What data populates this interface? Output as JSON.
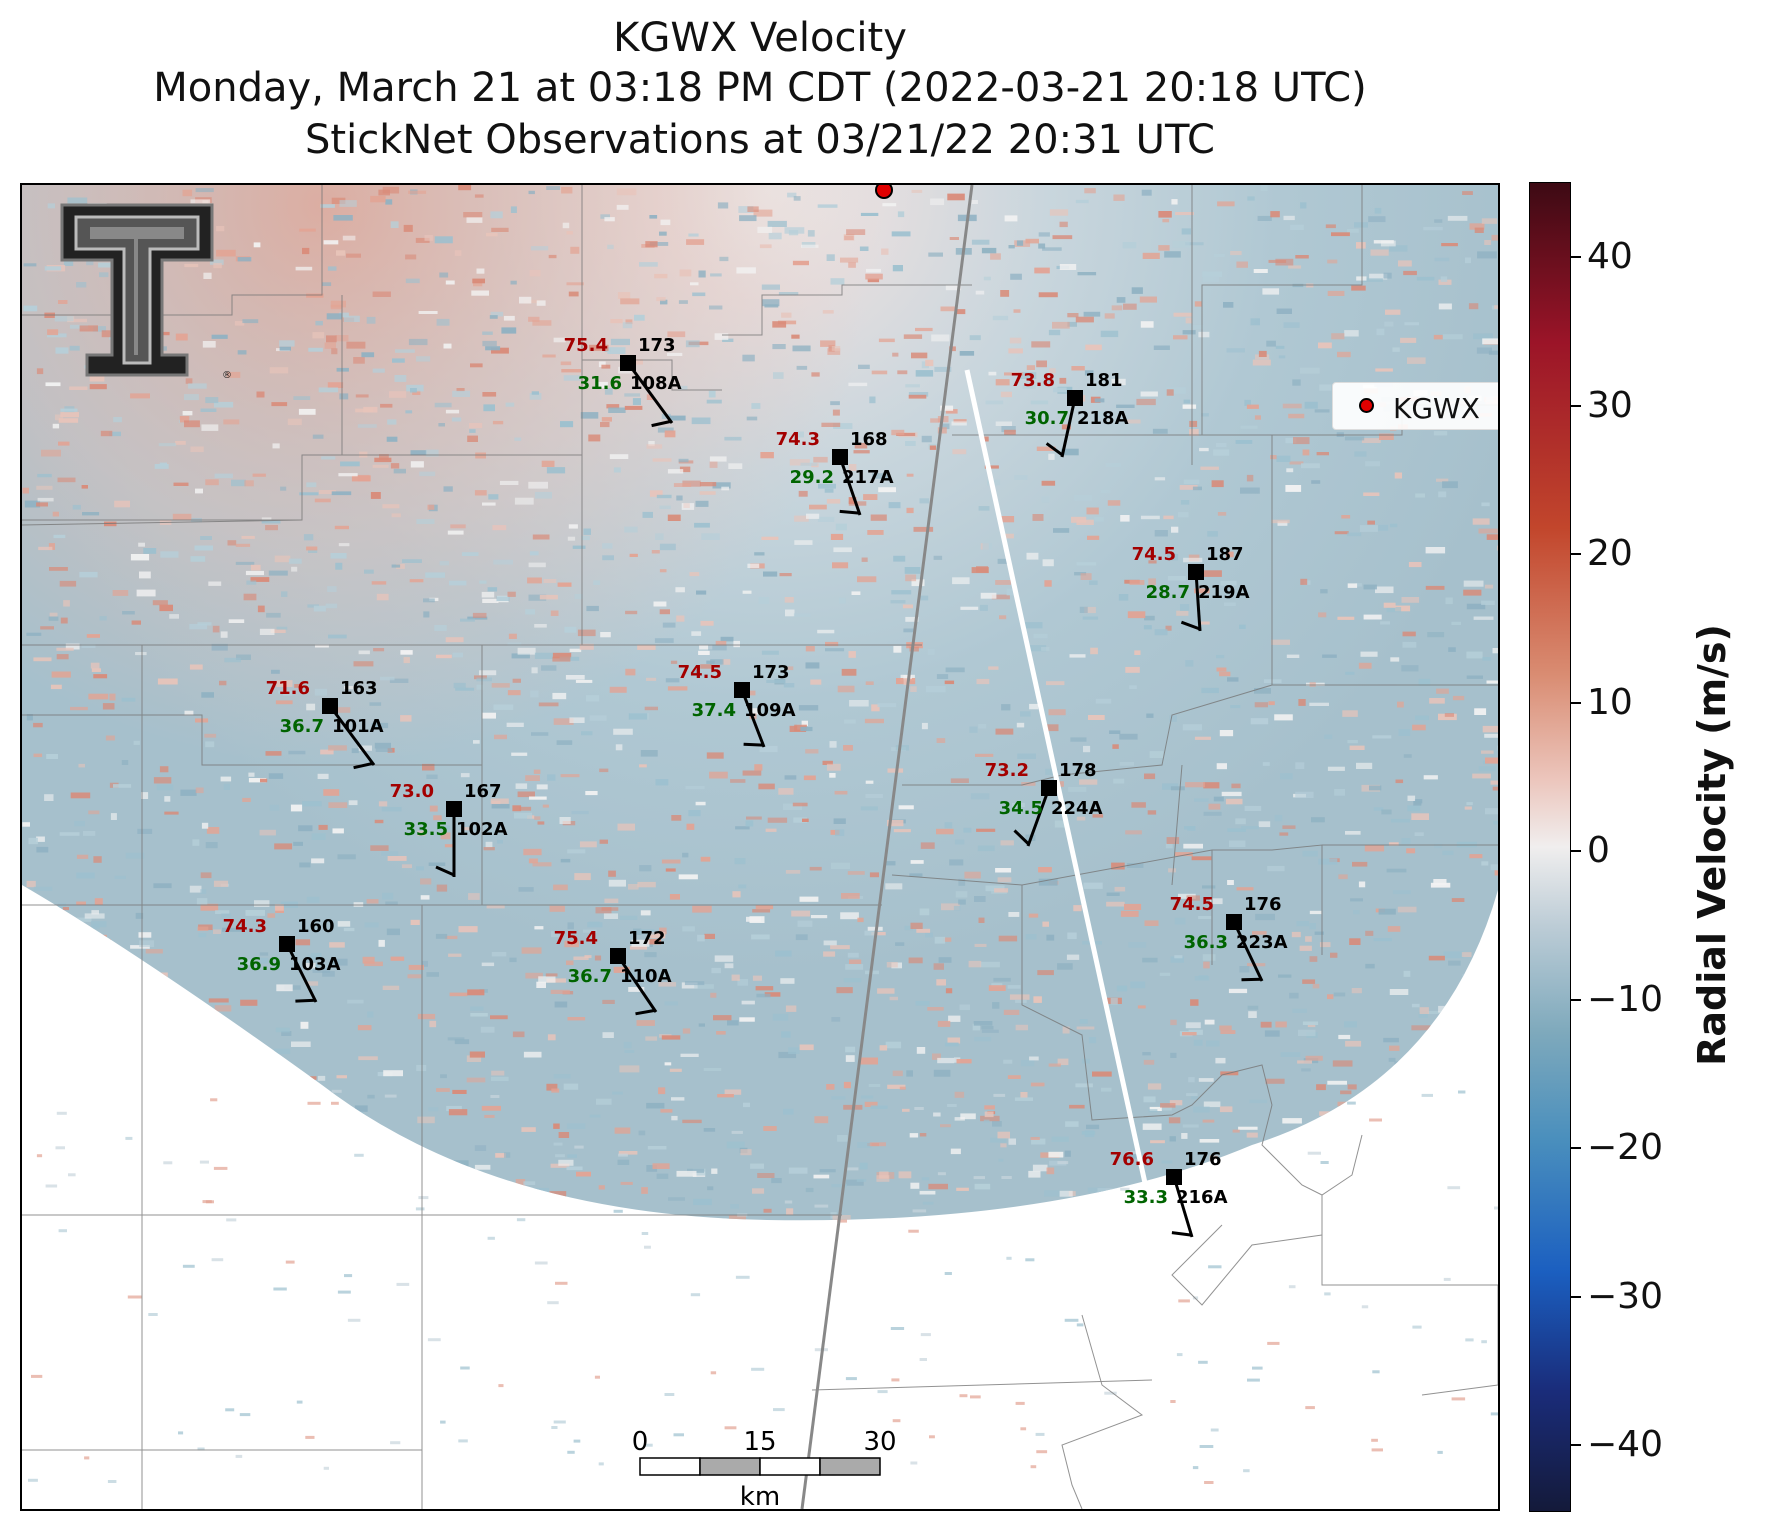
{
  "title": {
    "line1": "KGWX Velocity",
    "line2": "Monday, March 21 at 03:18 PM CDT (2022-03-21 20:18 UTC)",
    "line3": "StickNet Observations at 03/21/22 20:31 UTC"
  },
  "legend": {
    "label": "KGWX"
  },
  "colorbar": {
    "label": "Radial Velocity (m/s)",
    "ticks": [
      "40",
      "30",
      "20",
      "10",
      "0",
      "−10",
      "−20",
      "−30",
      "−40"
    ]
  },
  "scalebar": {
    "ticks": [
      "0",
      "15",
      "30"
    ],
    "unit": "km"
  },
  "stations": [
    {
      "id": "108A",
      "temp": "75.4",
      "dir": "173",
      "dew": "31.6"
    },
    {
      "id": "217A",
      "temp": "74.3",
      "dir": "168",
      "dew": "29.2"
    },
    {
      "id": "218A",
      "temp": "73.8",
      "dir": "181",
      "dew": "30.7"
    },
    {
      "id": "219A",
      "temp": "74.5",
      "dir": "187",
      "dew": "28.7"
    },
    {
      "id": "101A",
      "temp": "71.6",
      "dir": "163",
      "dew": "36.7"
    },
    {
      "id": "109A",
      "temp": "74.5",
      "dir": "173",
      "dew": "37.4"
    },
    {
      "id": "224A",
      "temp": "73.2",
      "dir": "178",
      "dew": "34.5"
    },
    {
      "id": "102A",
      "temp": "73.0",
      "dir": "167",
      "dew": "33.5"
    },
    {
      "id": "223A",
      "temp": "74.5",
      "dir": "176",
      "dew": "36.3"
    },
    {
      "id": "103A",
      "temp": "74.3",
      "dir": "160",
      "dew": "36.9"
    },
    {
      "id": "110A",
      "temp": "75.4",
      "dir": "172",
      "dew": "36.7"
    },
    {
      "id": "216A",
      "temp": "76.6",
      "dir": "176",
      "dew": "33.3"
    }
  ],
  "logo": {
    "icon": "texas-tech-double-t-logo"
  },
  "colors": {
    "temp": "#a30000",
    "dew": "#006400",
    "radar": "#e00000"
  }
}
